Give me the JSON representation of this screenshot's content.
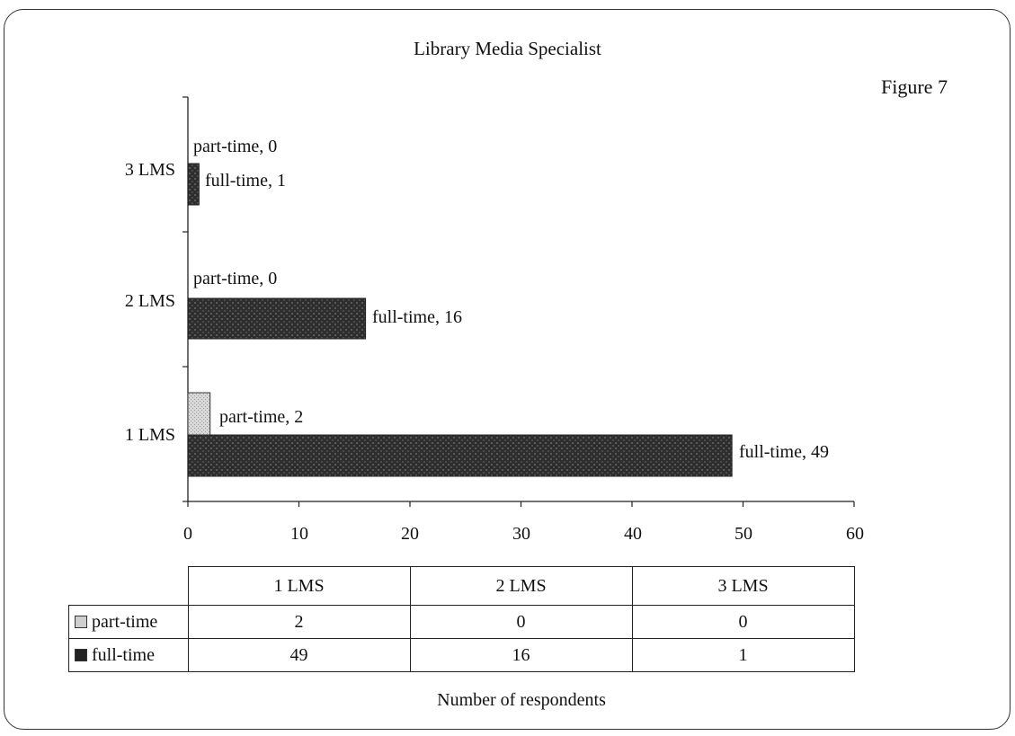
{
  "chart_data": {
    "type": "bar",
    "orientation": "horizontal",
    "title": "Library Media Specialist",
    "figure_label": "Figure 7",
    "xlabel": "Number of respondents",
    "ylabel": "",
    "xlim": [
      0,
      60
    ],
    "x_ticks": [
      "0",
      "10",
      "20",
      "30",
      "40",
      "50",
      "60"
    ],
    "categories": [
      "1 LMS",
      "2 LMS",
      "3 LMS"
    ],
    "series": [
      {
        "name": "part-time",
        "values": [
          2,
          0,
          0
        ],
        "color": "#cfcfcf"
      },
      {
        "name": "full-time",
        "values": [
          49,
          16,
          1
        ],
        "color": "#3a3a3a"
      }
    ],
    "data_labels": {
      "1 LMS": {
        "part": "part-time, 2",
        "full": "full-time, 49"
      },
      "2 LMS": {
        "part": "part-time, 0",
        "full": "full-time, 16"
      },
      "3 LMS": {
        "part": "part-time, 0",
        "full": "full-time, 1"
      }
    },
    "data_table": {
      "columns": [
        "1 LMS",
        "2 LMS",
        "3 LMS"
      ],
      "rows": [
        {
          "label": "part-time",
          "values": [
            "2",
            "0",
            "0"
          ]
        },
        {
          "label": "full-time",
          "values": [
            "49",
            "16",
            "1"
          ]
        }
      ]
    },
    "grid": false,
    "legend": "data-table"
  }
}
